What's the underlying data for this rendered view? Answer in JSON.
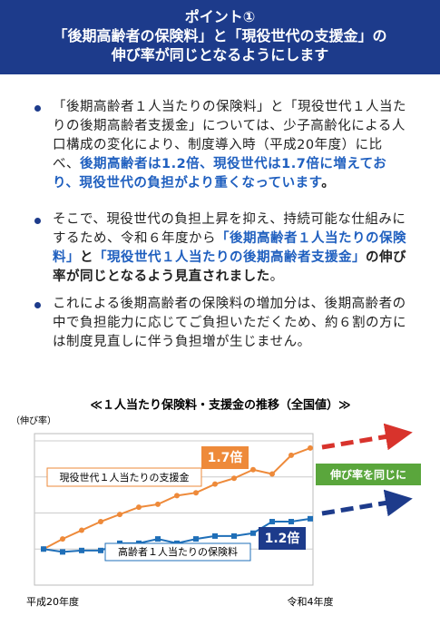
{
  "header": {
    "lines": [
      "ポイント①",
      "「後期高齢者の保険料」と「現役世代の支援金」の",
      "伸び率が同じとなるようにします"
    ]
  },
  "bullets": [
    [
      {
        "text": "「後期高齢者１人当たりの保険料」と「現役世代１人当たりの後期高齢者支援金」については、少子高齢化による人口構成の変化により、制度導入時（平成20年度）に比べ、",
        "style": "plain"
      },
      {
        "text": "後期高齢者は1.2倍、現役世代は1.7倍に増えており、現役世代の負担がより重くなっています",
        "style": "blue"
      },
      {
        "text": "。",
        "style": "bold"
      }
    ],
    [
      {
        "text": "そこで、現役世代の負担上昇を抑え、持続可能な仕組みにするため、令和６年度から",
        "style": "plain"
      },
      {
        "text": "「後期高齢者１人当たりの保険料」",
        "style": "blue"
      },
      {
        "text": "と",
        "style": "bold"
      },
      {
        "text": "「現役世代１人当たりの後期高齢者支援金」",
        "style": "blue"
      },
      {
        "text": "の伸び率が同じとなるよう見直されました",
        "style": "bold"
      },
      {
        "text": "。",
        "style": "plain"
      }
    ],
    [
      {
        "text": "これによる後期高齢者の保険料の増加分は、後期高齢者の中で負担能力に応じてご負担いただくため、約６割の方には制度見直しに伴う負担増が生じません。",
        "style": "plain"
      }
    ]
  ],
  "chart_data": {
    "type": "line",
    "title": "≪１人当たり保険料・支援金の推移（全国値）≫",
    "y_label": "（伸び率）",
    "categories": [
      "平成20年度",
      null,
      null,
      null,
      null,
      null,
      null,
      null,
      null,
      null,
      null,
      null,
      null,
      null,
      "令和4年度"
    ],
    "ylim": [
      0.75,
      1.8
    ],
    "yticks": [
      1.0,
      1.25,
      1.5,
      1.75
    ],
    "grid": true,
    "series": [
      {
        "name": "現役世代１人当たりの支援金",
        "color": "#ee8a3a",
        "marker": "circle",
        "values": [
          1.0,
          1.07,
          1.13,
          1.19,
          1.24,
          1.29,
          1.31,
          1.37,
          1.39,
          1.45,
          1.49,
          1.55,
          1.52,
          1.65,
          1.7
        ]
      },
      {
        "name": "高齢者１人当たりの保険料",
        "color": "#1f6fb8",
        "marker": "square",
        "values": [
          1.0,
          0.98,
          0.99,
          0.99,
          1.04,
          1.04,
          1.07,
          1.04,
          1.07,
          1.09,
          1.09,
          1.11,
          1.19,
          1.19,
          1.21
        ]
      }
    ],
    "annotations": [
      "1.7倍",
      "1.2倍",
      "伸び率を同じに"
    ]
  }
}
